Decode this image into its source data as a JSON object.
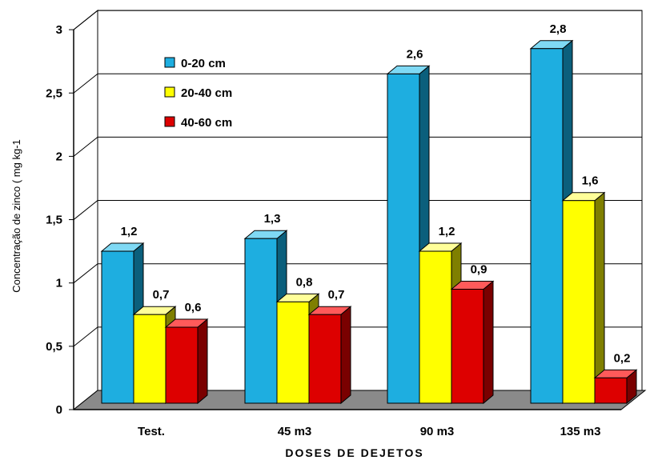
{
  "chart_data": {
    "type": "bar",
    "categories": [
      "Test.",
      "45 m3",
      "90 m3",
      "135 m3"
    ],
    "series": [
      {
        "name": "0-20 cm",
        "values": [
          1.2,
          1.3,
          2.6,
          2.8
        ],
        "labels": [
          "1,2",
          "1,3",
          "2,6",
          "2,8"
        ]
      },
      {
        "name": "20-40 cm",
        "values": [
          0.7,
          0.8,
          1.2,
          1.6
        ],
        "labels": [
          "0,7",
          "0,8",
          "1,2",
          "1,6"
        ]
      },
      {
        "name": "40-60 cm",
        "values": [
          0.6,
          0.7,
          0.9,
          0.2
        ],
        "labels": [
          "0,6",
          "0,7",
          "0,9",
          "0,2"
        ]
      }
    ],
    "yticks": [
      0,
      0.5,
      1,
      1.5,
      2,
      2.5,
      3
    ],
    "ytick_labels": [
      "0",
      "0,5",
      "1",
      "1,5",
      "2",
      "2,5",
      "3"
    ],
    "ylim": [
      0,
      3
    ],
    "xlabel": "DOSES DE DEJETOS",
    "ylabel": "Concentração de zinco ( mg kg-1",
    "legend": "top-left",
    "grid": true,
    "three_d": true,
    "colors": {
      "series": [
        "#1eaee0",
        "#ffff00",
        "#dd0000"
      ],
      "series_side": [
        "#0b5f7c",
        "#7f7f00",
        "#7a0000"
      ],
      "series_top": [
        "#7fd9f4",
        "#ffff99",
        "#ff5a5a"
      ],
      "floor": "#8a8a8a",
      "wall": "#ffffff"
    }
  }
}
